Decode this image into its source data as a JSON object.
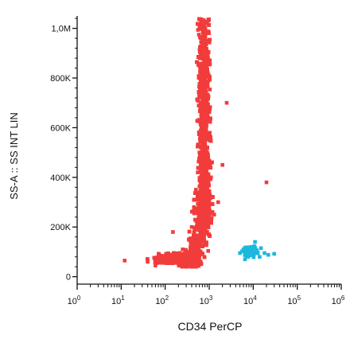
{
  "chart_data": {
    "type": "scatter",
    "xlabel": "CD34 PerCP",
    "ylabel": "SS-A :: SS INT LIN",
    "x_scale": "log",
    "xlim": [
      1,
      1000000
    ],
    "ylim": [
      -30000,
      1050000
    ],
    "x_ticks": [
      {
        "value": 1,
        "base": "10",
        "exp": "0"
      },
      {
        "value": 10,
        "base": "10",
        "exp": "1"
      },
      {
        "value": 100,
        "base": "10",
        "exp": "2"
      },
      {
        "value": 1000,
        "base": "10",
        "exp": "3"
      },
      {
        "value": 10000,
        "base": "10",
        "exp": "4"
      },
      {
        "value": 100000,
        "base": "10",
        "exp": "5"
      },
      {
        "value": 1000000,
        "base": "10",
        "exp": "6"
      }
    ],
    "y_ticks": [
      {
        "value": 0,
        "label": "0"
      },
      {
        "value": 200000,
        "label": "200K"
      },
      {
        "value": 400000,
        "label": "400K"
      },
      {
        "value": 600000,
        "label": "600K"
      },
      {
        "value": 800000,
        "label": "800K"
      },
      {
        "value": 1000000,
        "label": "1,0M"
      }
    ],
    "grid": false,
    "legend": "none",
    "series": [
      {
        "color": "#f23c3c",
        "approx_event_count": 9000,
        "points": [
          [
            40,
            60000
          ],
          [
            60,
            45000
          ],
          [
            80,
            70000
          ],
          [
            100,
            85000
          ],
          [
            130,
            60000
          ],
          [
            160,
            95000
          ],
          [
            200,
            70000
          ],
          [
            250,
            110000
          ],
          [
            300,
            90000
          ],
          [
            350,
            150000
          ],
          [
            400,
            200000
          ],
          [
            450,
            280000
          ],
          [
            500,
            350000
          ],
          [
            550,
            420000
          ],
          [
            600,
            500000
          ],
          [
            650,
            580000
          ],
          [
            700,
            650000
          ],
          [
            750,
            720000
          ],
          [
            800,
            800000
          ],
          [
            850,
            880000
          ],
          [
            900,
            950000
          ],
          [
            950,
            1030000
          ],
          [
            1100,
            400000
          ],
          [
            1300,
            250000
          ],
          [
            1600,
            300000
          ],
          [
            2000,
            450000
          ],
          [
            2500,
            700000
          ],
          [
            20000,
            380000
          ],
          [
            12,
            65000
          ],
          [
            150,
            180000
          ]
        ]
      },
      {
        "color": "#1bb8dd",
        "approx_event_count": 70,
        "points": [
          [
            5000,
            95000
          ],
          [
            6000,
            110000
          ],
          [
            7000,
            85000
          ],
          [
            8000,
            100000
          ],
          [
            9000,
            120000
          ],
          [
            10000,
            90000
          ],
          [
            11000,
            140000
          ],
          [
            12000,
            105000
          ],
          [
            14000,
            80000
          ],
          [
            15000,
            115000
          ],
          [
            18000,
            95000
          ],
          [
            22000,
            88000
          ],
          [
            30000,
            92000
          ],
          [
            6500,
            70000
          ]
        ]
      }
    ]
  }
}
